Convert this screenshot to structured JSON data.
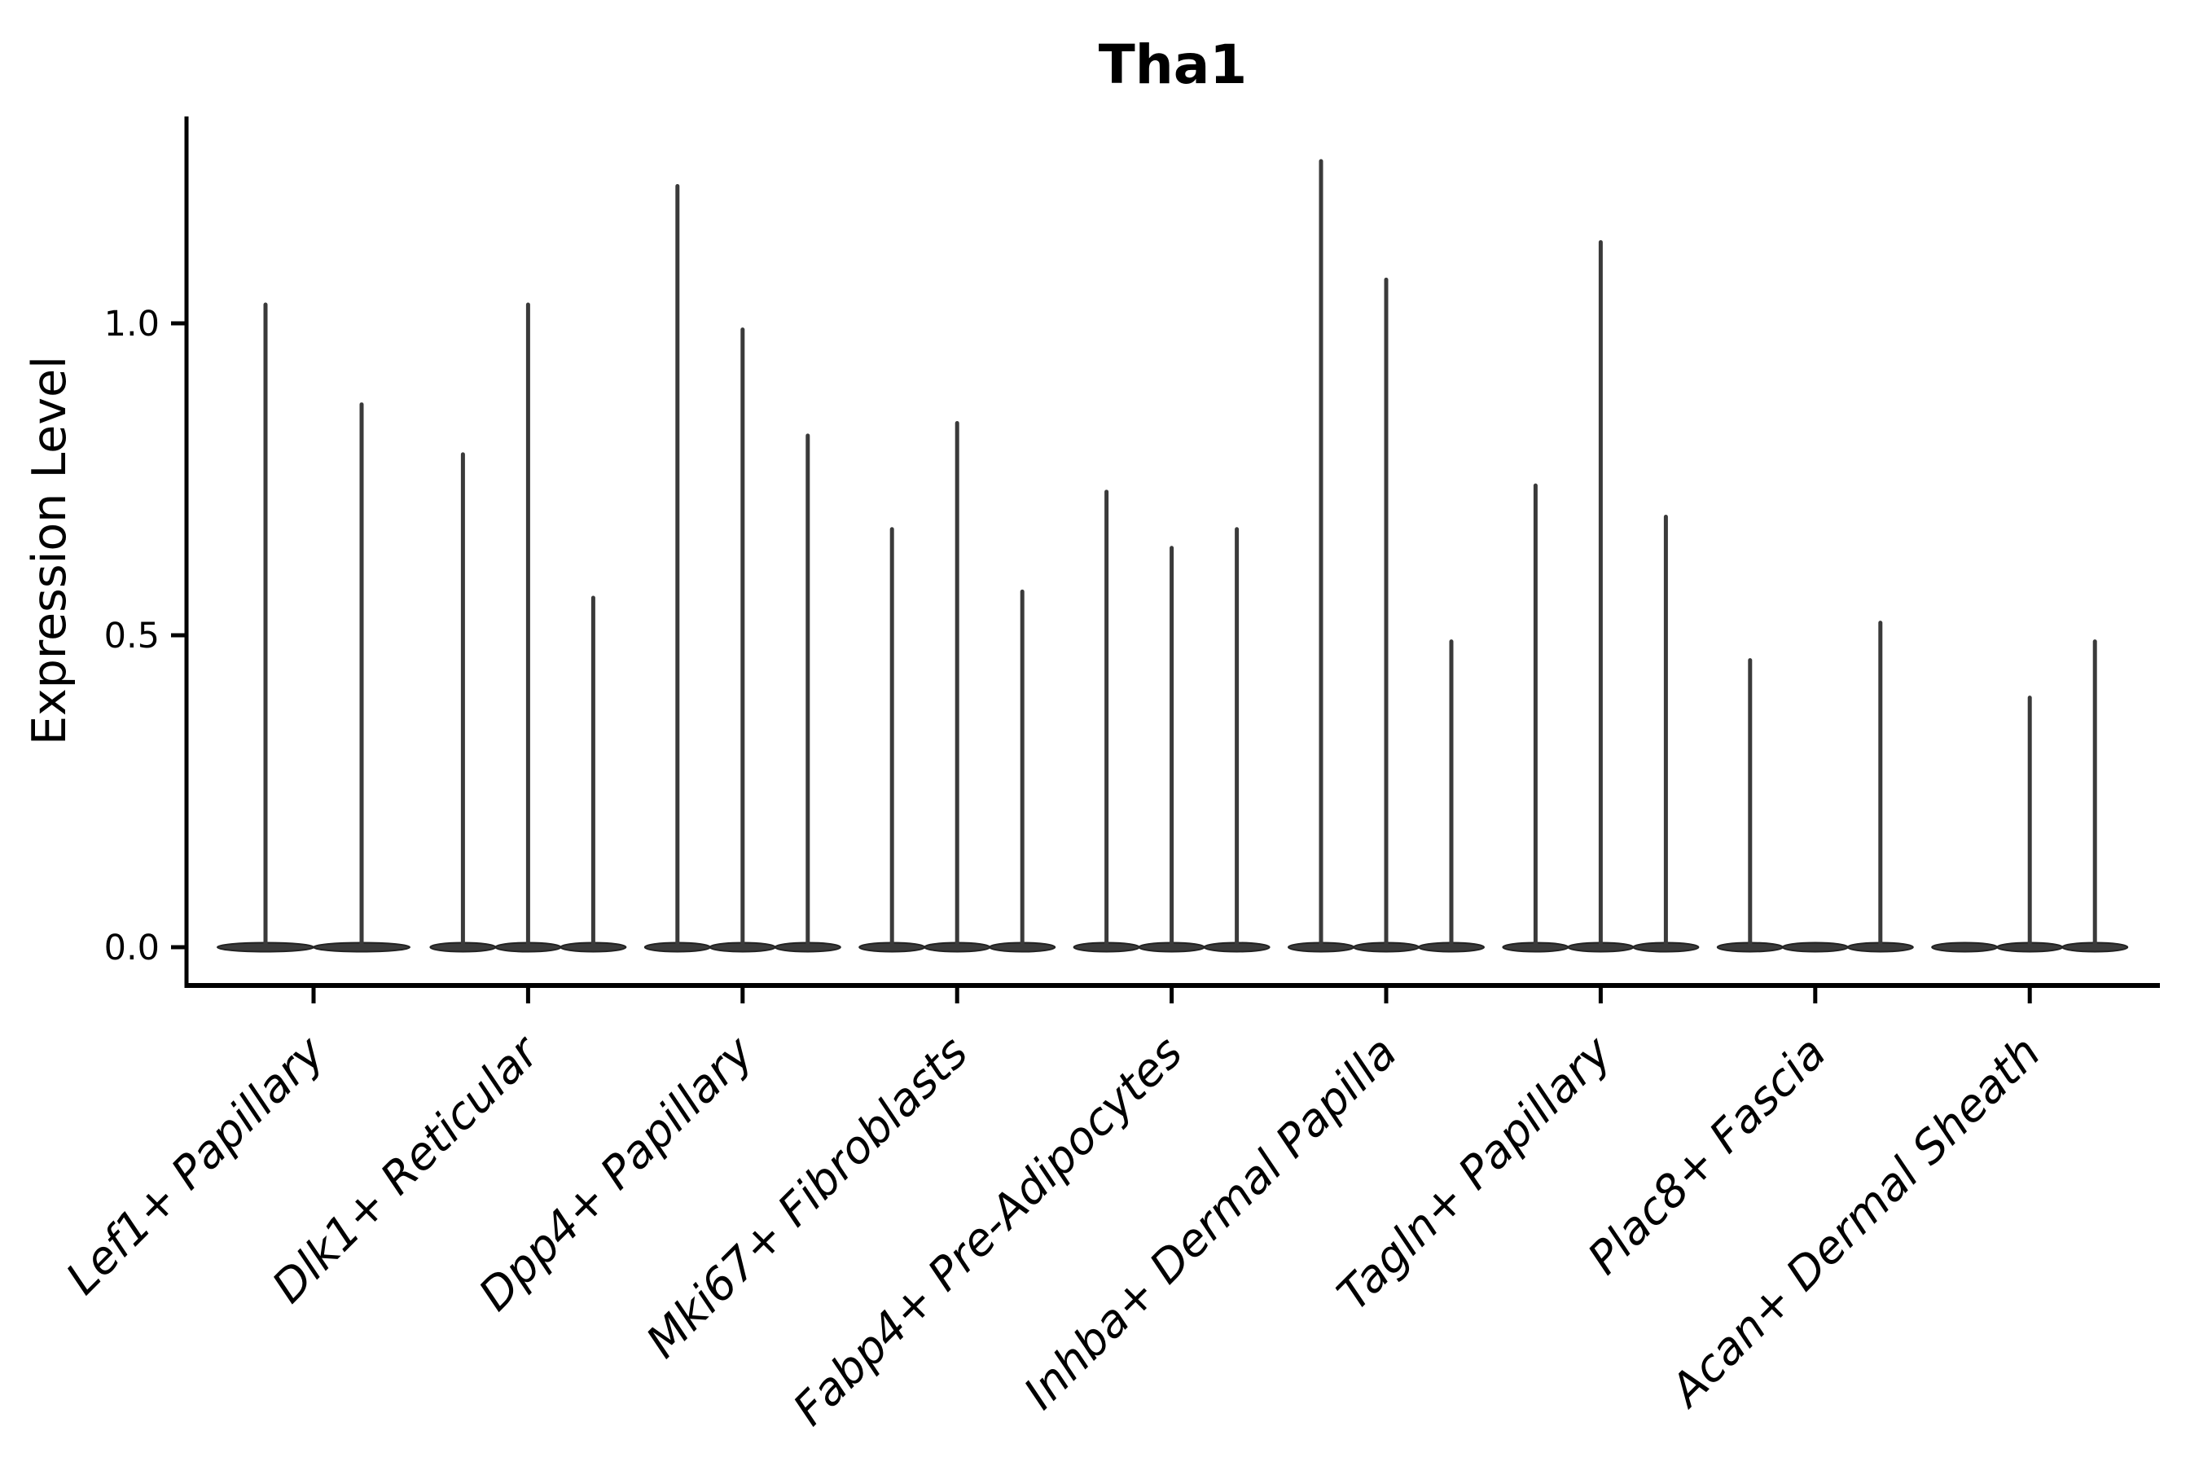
{
  "figure": {
    "background": "#ffffff",
    "axis_color": "#000000",
    "text_color": "#000000"
  },
  "chart_data": {
    "type": "violin",
    "title": "Tha1",
    "ylabel": "Expression Level",
    "xlabel": "",
    "yticks": [
      1.0,
      0.5,
      0.0
    ],
    "ytick_labels": [
      "1.0",
      "0.5",
      "0.0"
    ],
    "ylim": [
      -0.06,
      1.33
    ],
    "grid": false,
    "legend": "none",
    "violin_fill_color": "#3a3a3a",
    "violin_edge_color": "#222222",
    "categories": [
      "Lef1+ Papillary",
      "Dlk1+ Reticular",
      "Dpp4+ Papillary",
      "Mki67+ Fibroblasts",
      "Fabp4+ Pre-Adipocytes",
      "Inhba+ Dermal Papilla",
      "Tagln+ Papillary",
      "Plac8+ Fascia",
      "Acan+ Dermal Sheath"
    ],
    "groups": [
      {
        "label": "Lef1+ Papillary",
        "violin_offsets": [
          -59,
          59
        ],
        "violin_width": 118,
        "violin_maxima": [
          1.03,
          0.87
        ]
      },
      {
        "label": "Dlk1+ Reticular",
        "violin_offsets": [
          -80,
          0,
          80
        ],
        "violin_width": 80,
        "violin_maxima": [
          0.79,
          1.03,
          0.56
        ]
      },
      {
        "label": "Dpp4+ Papillary",
        "violin_offsets": [
          -80,
          0,
          80
        ],
        "violin_width": 80,
        "violin_maxima": [
          1.22,
          0.99,
          0.82
        ]
      },
      {
        "label": "Mki67+ Fibroblasts",
        "violin_offsets": [
          -80,
          0,
          80
        ],
        "violin_width": 80,
        "violin_maxima": [
          0.67,
          0.84,
          0.57
        ]
      },
      {
        "label": "Fabp4+ Pre-Adipocytes",
        "violin_offsets": [
          -80,
          0,
          80
        ],
        "violin_width": 80,
        "violin_maxima": [
          0.73,
          0.64,
          0.67
        ]
      },
      {
        "label": "Inhba+ Dermal Papilla",
        "violin_offsets": [
          -80,
          0,
          80
        ],
        "violin_width": 80,
        "violin_maxima": [
          1.26,
          1.07,
          0.49
        ]
      },
      {
        "label": "Tagln+ Papillary",
        "violin_offsets": [
          -80,
          0,
          80
        ],
        "violin_width": 80,
        "violin_maxima": [
          0.74,
          1.13,
          0.69
        ]
      },
      {
        "label": "Plac8+ Fascia",
        "violin_offsets": [
          -80,
          0,
          80
        ],
        "violin_width": 80,
        "violin_maxima": [
          0.46,
          0.0,
          0.52
        ]
      },
      {
        "label": "Acan+ Dermal Sheath",
        "violin_offsets": [
          -80,
          0,
          80
        ],
        "violin_width": 80,
        "violin_maxima": [
          0.0,
          0.4,
          0.49
        ]
      }
    ]
  }
}
